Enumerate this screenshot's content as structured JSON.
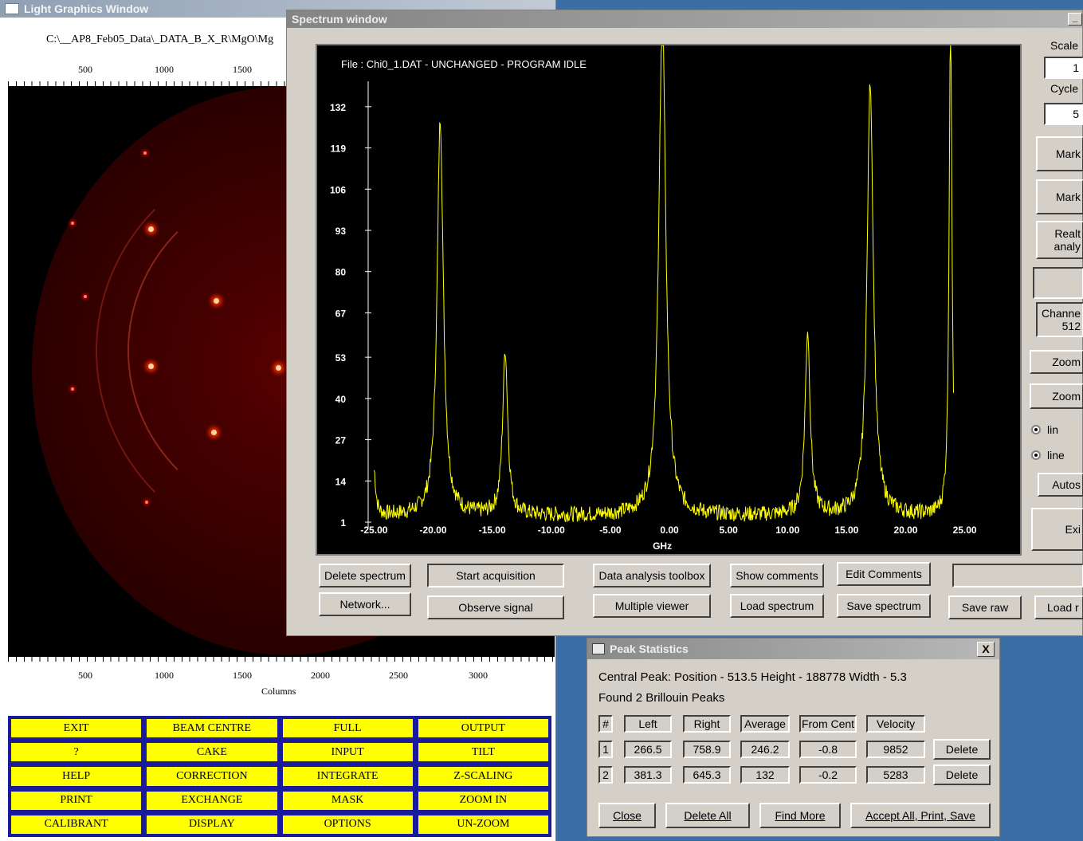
{
  "lgw": {
    "title": "Light Graphics Window",
    "path": "C:\\__AP8_Feb05_Data\\_DATA_B_X_R\\MgO\\Mg",
    "top_ticks": [
      "500",
      "1000",
      "1500"
    ],
    "bottom_ticks": [
      "500",
      "1000",
      "1500",
      "2000",
      "2500",
      "3000"
    ],
    "columns_label": "Columns",
    "menu": [
      "EXIT",
      "BEAM CENTRE",
      "FULL",
      "OUTPUT",
      "?",
      "CAKE",
      "INPUT",
      "TILT",
      "HELP",
      "CORRECTION",
      "INTEGRATE",
      "Z-SCALING",
      "PRINT",
      "EXCHANGE",
      "MASK",
      "ZOOM IN",
      "CALIBRANT",
      "DISPLAY",
      "OPTIONS",
      "UN-ZOOM"
    ]
  },
  "spectrum": {
    "title": "Spectrum window",
    "minimize": "_",
    "file_status": "File : Chi0_1.DAT - UNCHANGED - PROGRAM IDLE",
    "buttons": {
      "delete_spectrum": "Delete spectrum",
      "start_acquisition": "Start acquisition",
      "data_analysis": "Data analysis toolbox",
      "show_comments": "Show comments",
      "edit_comments": "Edit Comments",
      "network": "Network...",
      "observe_signal": "Observe signal",
      "multiple_viewer": "Multiple viewer",
      "load_spectrum": "Load spectrum",
      "save_spectrum": "Save spectrum",
      "save_raw": "Save raw",
      "load_raw": "Load r"
    },
    "side": {
      "scale_label": "Scale",
      "scale_value": "1",
      "cycle_label": "Cycle",
      "cycle_value": "5",
      "mark1": "Mark",
      "mark2": "Mark",
      "realtime_line1": "Realt",
      "realtime_line2": "analy",
      "channel_line1": "Channe",
      "channel_line2": "512",
      "zoom1": "Zoom",
      "zoom2": "Zoom",
      "lin": "lin",
      "line": "line",
      "autoscale": "Autos",
      "exit": "Exi"
    }
  },
  "chart_data": {
    "type": "line",
    "title": "File : Chi0_1.DAT - UNCHANGED - PROGRAM IDLE",
    "xlabel": "GHz",
    "ylabel": "",
    "xlim": [
      -25.5,
      25.5
    ],
    "ylim": [
      0,
      140
    ],
    "x_ticks": [
      "-25.00",
      "-20.00",
      "-15.00",
      "-10.00",
      "-5.00",
      "0.00",
      "5.00",
      "10.00",
      "15.00",
      "20.00",
      "25.00"
    ],
    "y_ticks": [
      "1",
      "14",
      "27",
      "40",
      "53",
      "67",
      "80",
      "93",
      "106",
      "119",
      "132"
    ],
    "line_color": "#ffff00",
    "baseline": 3,
    "peaks": [
      {
        "x": -25.0,
        "height": 14,
        "width": 0.3
      },
      {
        "x": -19.4,
        "height": 125,
        "width": 0.55
      },
      {
        "x": -13.9,
        "height": 52,
        "width": 0.45
      },
      {
        "x": -0.6,
        "height": 160,
        "width": 0.6
      },
      {
        "x": 11.7,
        "height": 58,
        "width": 0.45
      },
      {
        "x": 17.0,
        "height": 137,
        "width": 0.55
      },
      {
        "x": 23.8,
        "height": 160,
        "width": 0.25
      }
    ]
  },
  "peak_stats": {
    "title": "Peak Statistics",
    "close": "X",
    "central_peak": "Central Peak:  Position - 513.5  Height - 188778  Width - 5.3",
    "found": "Found  2  Brillouin Peaks",
    "headers": [
      "#",
      "Left",
      "Right",
      "Average",
      "From Cent",
      "Velocity"
    ],
    "rows": [
      [
        "1",
        "266.5",
        "758.9",
        "246.2",
        "-0.8",
        "9852"
      ],
      [
        "2",
        "381.3",
        "645.3",
        "132",
        "-0.2",
        "5283"
      ]
    ],
    "delete_label": "Delete",
    "buttons": {
      "close": "Close",
      "delete_all": "Delete All",
      "find_more": "Find More",
      "accept_all": "Accept All, Print, Save"
    }
  }
}
